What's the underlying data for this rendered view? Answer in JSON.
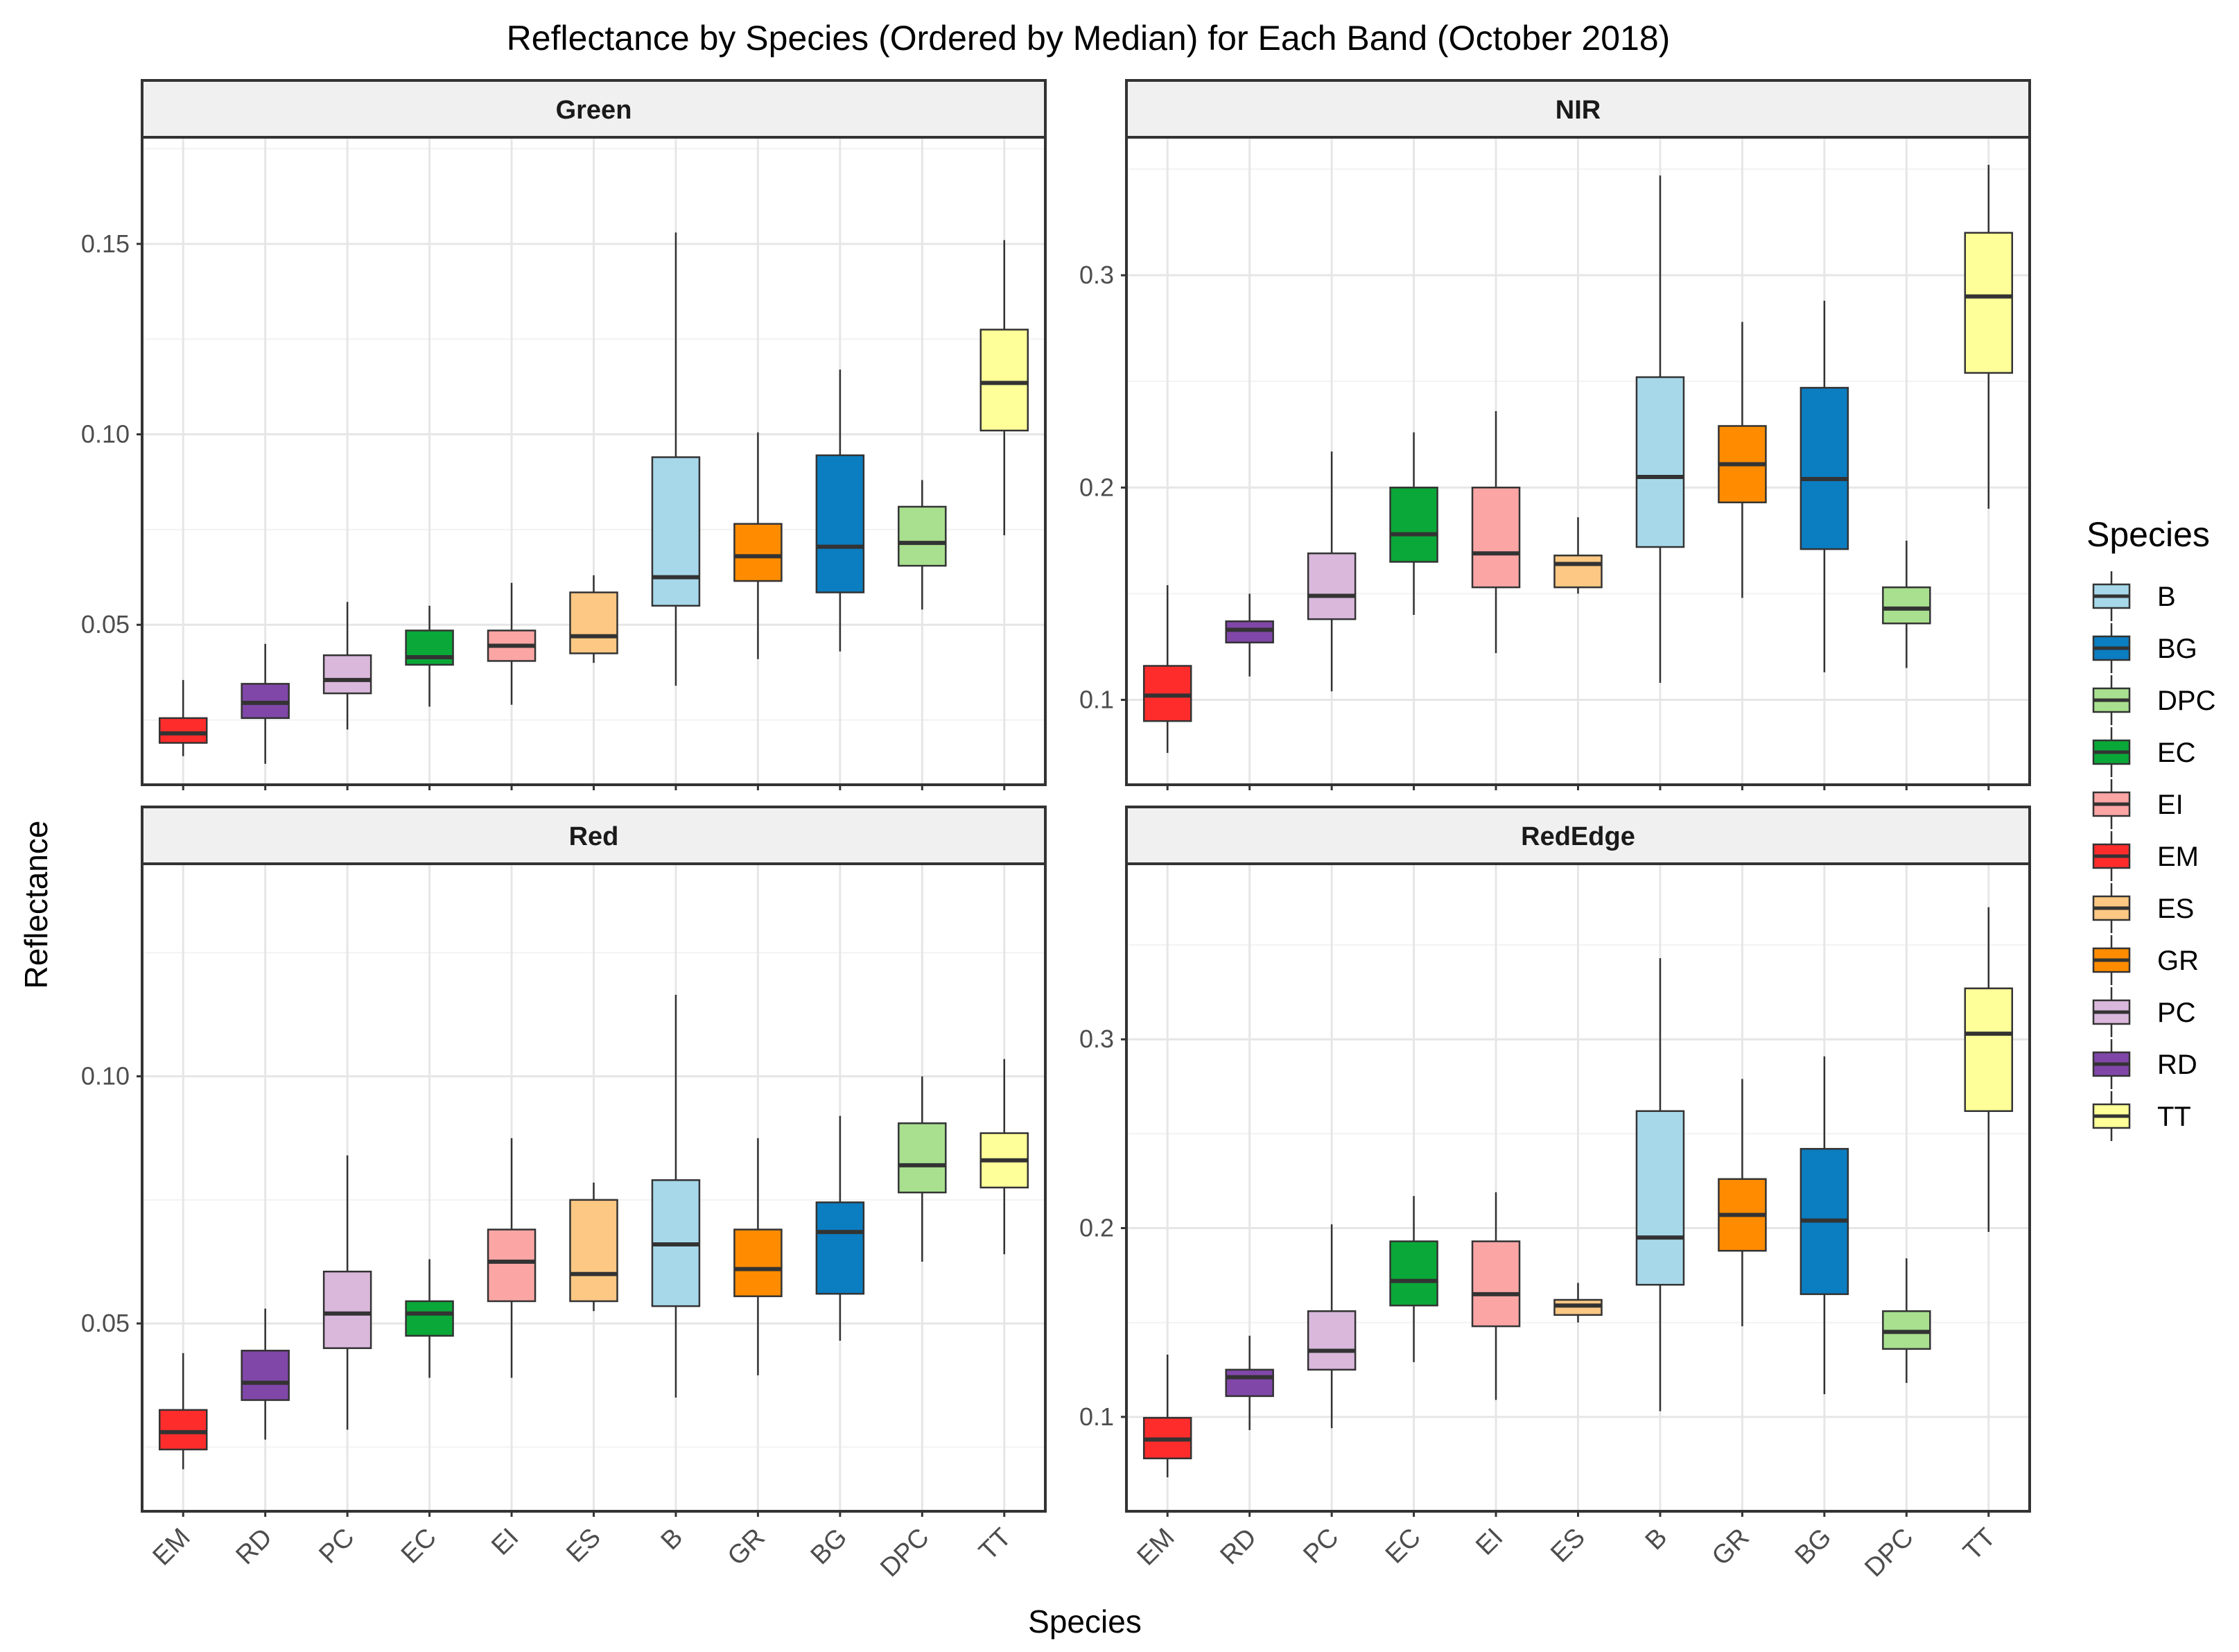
{
  "chart_data": {
    "type": "box",
    "title": "Reflectance by Species (Ordered by Median) for Each Band (October 2018)",
    "xlabel": "Species",
    "ylabel": "Reflectance",
    "legend": {
      "title": "Species",
      "position": "right",
      "entries": [
        "B",
        "BG",
        "DPC",
        "EC",
        "EI",
        "EM",
        "ES",
        "GR",
        "PC",
        "RD",
        "TT"
      ]
    },
    "colors": {
      "B": "#a6d8ea",
      "BG": "#0b7dc1",
      "DPC": "#a8e08f",
      "EC": "#0aa838",
      "EI": "#fca5a5",
      "EM": "#ff2c2c",
      "ES": "#fdc883",
      "GR": "#ff8c00",
      "PC": "#d9b8dc",
      "RD": "#8047a8",
      "TT": "#ffff99"
    },
    "grid": true,
    "panels": [
      {
        "name": "Green",
        "categories": [
          "EM",
          "RD",
          "PC",
          "EC",
          "EI",
          "ES",
          "B",
          "GR",
          "BG",
          "DPC",
          "TT"
        ],
        "ylim": [
          0.008,
          0.178
        ],
        "ticks": [
          0.05,
          0.1,
          0.15
        ],
        "tick_labels": [
          "0.05",
          "0.10",
          "0.15"
        ],
        "boxes": [
          {
            "min": 0.0155,
            "q1": 0.019,
            "median": 0.0215,
            "q3": 0.0255,
            "max": 0.0355
          },
          {
            "min": 0.0135,
            "q1": 0.0255,
            "median": 0.0295,
            "q3": 0.0345,
            "max": 0.045
          },
          {
            "min": 0.0225,
            "q1": 0.032,
            "median": 0.0355,
            "q3": 0.042,
            "max": 0.056
          },
          {
            "min": 0.0285,
            "q1": 0.0395,
            "median": 0.0415,
            "q3": 0.0485,
            "max": 0.055
          },
          {
            "min": 0.029,
            "q1": 0.0405,
            "median": 0.0445,
            "q3": 0.0485,
            "max": 0.061
          },
          {
            "min": 0.04,
            "q1": 0.0425,
            "median": 0.047,
            "q3": 0.0585,
            "max": 0.063
          },
          {
            "min": 0.034,
            "q1": 0.055,
            "median": 0.0625,
            "q3": 0.094,
            "max": 0.153
          },
          {
            "min": 0.041,
            "q1": 0.0615,
            "median": 0.068,
            "q3": 0.0765,
            "max": 0.1005
          },
          {
            "min": 0.043,
            "q1": 0.0585,
            "median": 0.0705,
            "q3": 0.0945,
            "max": 0.117
          },
          {
            "min": 0.054,
            "q1": 0.0655,
            "median": 0.0715,
            "q3": 0.081,
            "max": 0.088
          },
          {
            "min": 0.0735,
            "q1": 0.101,
            "median": 0.1135,
            "q3": 0.1275,
            "max": 0.151
          }
        ]
      },
      {
        "name": "NIR",
        "categories": [
          "EM",
          "RD",
          "PC",
          "EC",
          "EI",
          "ES",
          "B",
          "GR",
          "BG",
          "DPC",
          "TT"
        ],
        "ylim": [
          0.06,
          0.365
        ],
        "ticks": [
          0.1,
          0.2,
          0.3
        ],
        "tick_labels": [
          "0.1",
          "0.2",
          "0.3"
        ],
        "boxes": [
          {
            "min": 0.075,
            "q1": 0.09,
            "median": 0.102,
            "q3": 0.116,
            "max": 0.154
          },
          {
            "min": 0.111,
            "q1": 0.127,
            "median": 0.133,
            "q3": 0.137,
            "max": 0.15
          },
          {
            "min": 0.104,
            "q1": 0.138,
            "median": 0.149,
            "q3": 0.169,
            "max": 0.217
          },
          {
            "min": 0.14,
            "q1": 0.165,
            "median": 0.178,
            "q3": 0.2,
            "max": 0.226
          },
          {
            "min": 0.122,
            "q1": 0.153,
            "median": 0.169,
            "q3": 0.2,
            "max": 0.236
          },
          {
            "min": 0.15,
            "q1": 0.153,
            "median": 0.164,
            "q3": 0.168,
            "max": 0.186
          },
          {
            "min": 0.108,
            "q1": 0.172,
            "median": 0.205,
            "q3": 0.252,
            "max": 0.347
          },
          {
            "min": 0.148,
            "q1": 0.193,
            "median": 0.211,
            "q3": 0.229,
            "max": 0.278
          },
          {
            "min": 0.113,
            "q1": 0.171,
            "median": 0.204,
            "q3": 0.247,
            "max": 0.288
          },
          {
            "min": 0.115,
            "q1": 0.136,
            "median": 0.143,
            "q3": 0.153,
            "max": 0.175
          },
          {
            "min": 0.19,
            "q1": 0.254,
            "median": 0.29,
            "q3": 0.32,
            "max": 0.352
          }
        ]
      },
      {
        "name": "Red",
        "categories": [
          "EM",
          "RD",
          "PC",
          "EC",
          "EI",
          "ES",
          "B",
          "GR",
          "BG",
          "DPC",
          "TT"
        ],
        "ylim": [
          0.012,
          0.143
        ],
        "ticks": [
          0.05,
          0.1
        ],
        "tick_labels": [
          "0.05",
          "0.10"
        ],
        "boxes": [
          {
            "min": 0.0205,
            "q1": 0.0245,
            "median": 0.028,
            "q3": 0.0325,
            "max": 0.044
          },
          {
            "min": 0.0265,
            "q1": 0.0345,
            "median": 0.038,
            "q3": 0.0445,
            "max": 0.053
          },
          {
            "min": 0.0285,
            "q1": 0.045,
            "median": 0.052,
            "q3": 0.0605,
            "max": 0.084
          },
          {
            "min": 0.039,
            "q1": 0.0475,
            "median": 0.052,
            "q3": 0.0545,
            "max": 0.063
          },
          {
            "min": 0.039,
            "q1": 0.0545,
            "median": 0.0625,
            "q3": 0.069,
            "max": 0.0875
          },
          {
            "min": 0.0525,
            "q1": 0.0545,
            "median": 0.06,
            "q3": 0.075,
            "max": 0.0785
          },
          {
            "min": 0.035,
            "q1": 0.0535,
            "median": 0.066,
            "q3": 0.079,
            "max": 0.1165
          },
          {
            "min": 0.0395,
            "q1": 0.0555,
            "median": 0.061,
            "q3": 0.069,
            "max": 0.0875
          },
          {
            "min": 0.0465,
            "q1": 0.056,
            "median": 0.0685,
            "q3": 0.0745,
            "max": 0.092
          },
          {
            "min": 0.0625,
            "q1": 0.0765,
            "median": 0.082,
            "q3": 0.0905,
            "max": 0.1
          },
          {
            "min": 0.064,
            "q1": 0.0775,
            "median": 0.083,
            "q3": 0.0885,
            "max": 0.1035
          }
        ]
      },
      {
        "name": "RedEdge",
        "categories": [
          "EM",
          "RD",
          "PC",
          "EC",
          "EI",
          "ES",
          "B",
          "GR",
          "BG",
          "DPC",
          "TT"
        ],
        "ylim": [
          0.05,
          0.393
        ],
        "ticks": [
          0.1,
          0.2,
          0.3
        ],
        "tick_labels": [
          "0.1",
          "0.2",
          "0.3"
        ],
        "boxes": [
          {
            "min": 0.068,
            "q1": 0.078,
            "median": 0.088,
            "q3": 0.0995,
            "max": 0.133
          },
          {
            "min": 0.093,
            "q1": 0.111,
            "median": 0.121,
            "q3": 0.125,
            "max": 0.143
          },
          {
            "min": 0.094,
            "q1": 0.125,
            "median": 0.135,
            "q3": 0.156,
            "max": 0.202
          },
          {
            "min": 0.129,
            "q1": 0.159,
            "median": 0.172,
            "q3": 0.193,
            "max": 0.217
          },
          {
            "min": 0.109,
            "q1": 0.148,
            "median": 0.165,
            "q3": 0.193,
            "max": 0.219
          },
          {
            "min": 0.15,
            "q1": 0.154,
            "median": 0.159,
            "q3": 0.162,
            "max": 0.171
          },
          {
            "min": 0.103,
            "q1": 0.17,
            "median": 0.195,
            "q3": 0.262,
            "max": 0.343
          },
          {
            "min": 0.148,
            "q1": 0.188,
            "median": 0.207,
            "q3": 0.226,
            "max": 0.279
          },
          {
            "min": 0.112,
            "q1": 0.165,
            "median": 0.204,
            "q3": 0.242,
            "max": 0.291
          },
          {
            "min": 0.118,
            "q1": 0.136,
            "median": 0.145,
            "q3": 0.156,
            "max": 0.184
          },
          {
            "min": 0.198,
            "q1": 0.262,
            "median": 0.303,
            "q3": 0.327,
            "max": 0.37
          }
        ]
      }
    ]
  }
}
